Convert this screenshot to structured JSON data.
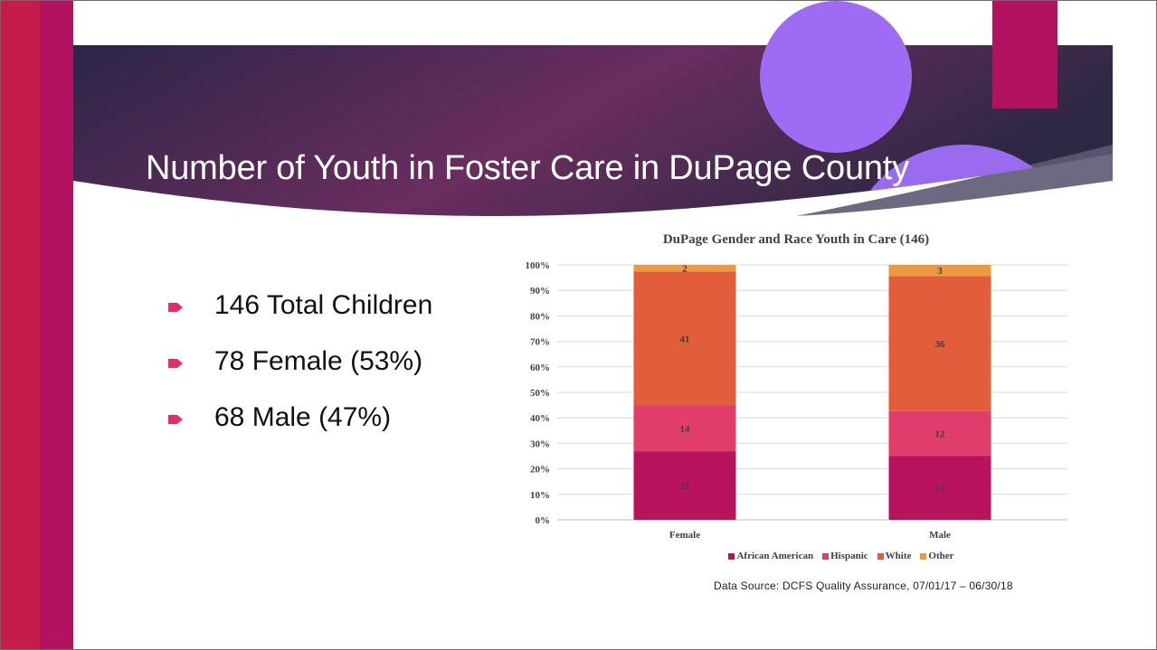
{
  "slide": {
    "title": "Number of Youth in Foster Care in DuPage County",
    "bullets": [
      {
        "text": "146 Total Children"
      },
      {
        "text": "78 Female (53%)"
      },
      {
        "text": "68 Male (47%)"
      }
    ],
    "source": "Data Source: DCFS Quality Assurance, 07/01/17 – 06/30/18",
    "colors": {
      "banner_dark": "#2b2647",
      "banner_mid": "#6a2d5f",
      "accent_magenta": "#b31260",
      "accent_crimson": "#c41d4b",
      "bubble_purple": "#9f6bf5",
      "bullet_icon": "#e0306a"
    }
  },
  "chart_data": {
    "type": "bar",
    "stacked": true,
    "percent_stacked": true,
    "title": "DuPage Gender and Race Youth in Care (146)",
    "categories": [
      "Female",
      "Male"
    ],
    "series": [
      {
        "name": "African American",
        "values": [
          21,
          17
        ],
        "color": "#b8145e"
      },
      {
        "name": "Hispanic",
        "values": [
          14,
          12
        ],
        "color": "#e03d6a"
      },
      {
        "name": "White",
        "values": [
          41,
          36
        ],
        "color": "#e25e3b"
      },
      {
        "name": "Other",
        "values": [
          2,
          3
        ],
        "color": "#eb9a42"
      }
    ],
    "y_ticks": [
      "0%",
      "10%",
      "20%",
      "30%",
      "40%",
      "50%",
      "60%",
      "70%",
      "80%",
      "90%",
      "100%"
    ],
    "ylim": [
      0,
      100
    ],
    "grid": true,
    "legend_position": "bottom"
  }
}
